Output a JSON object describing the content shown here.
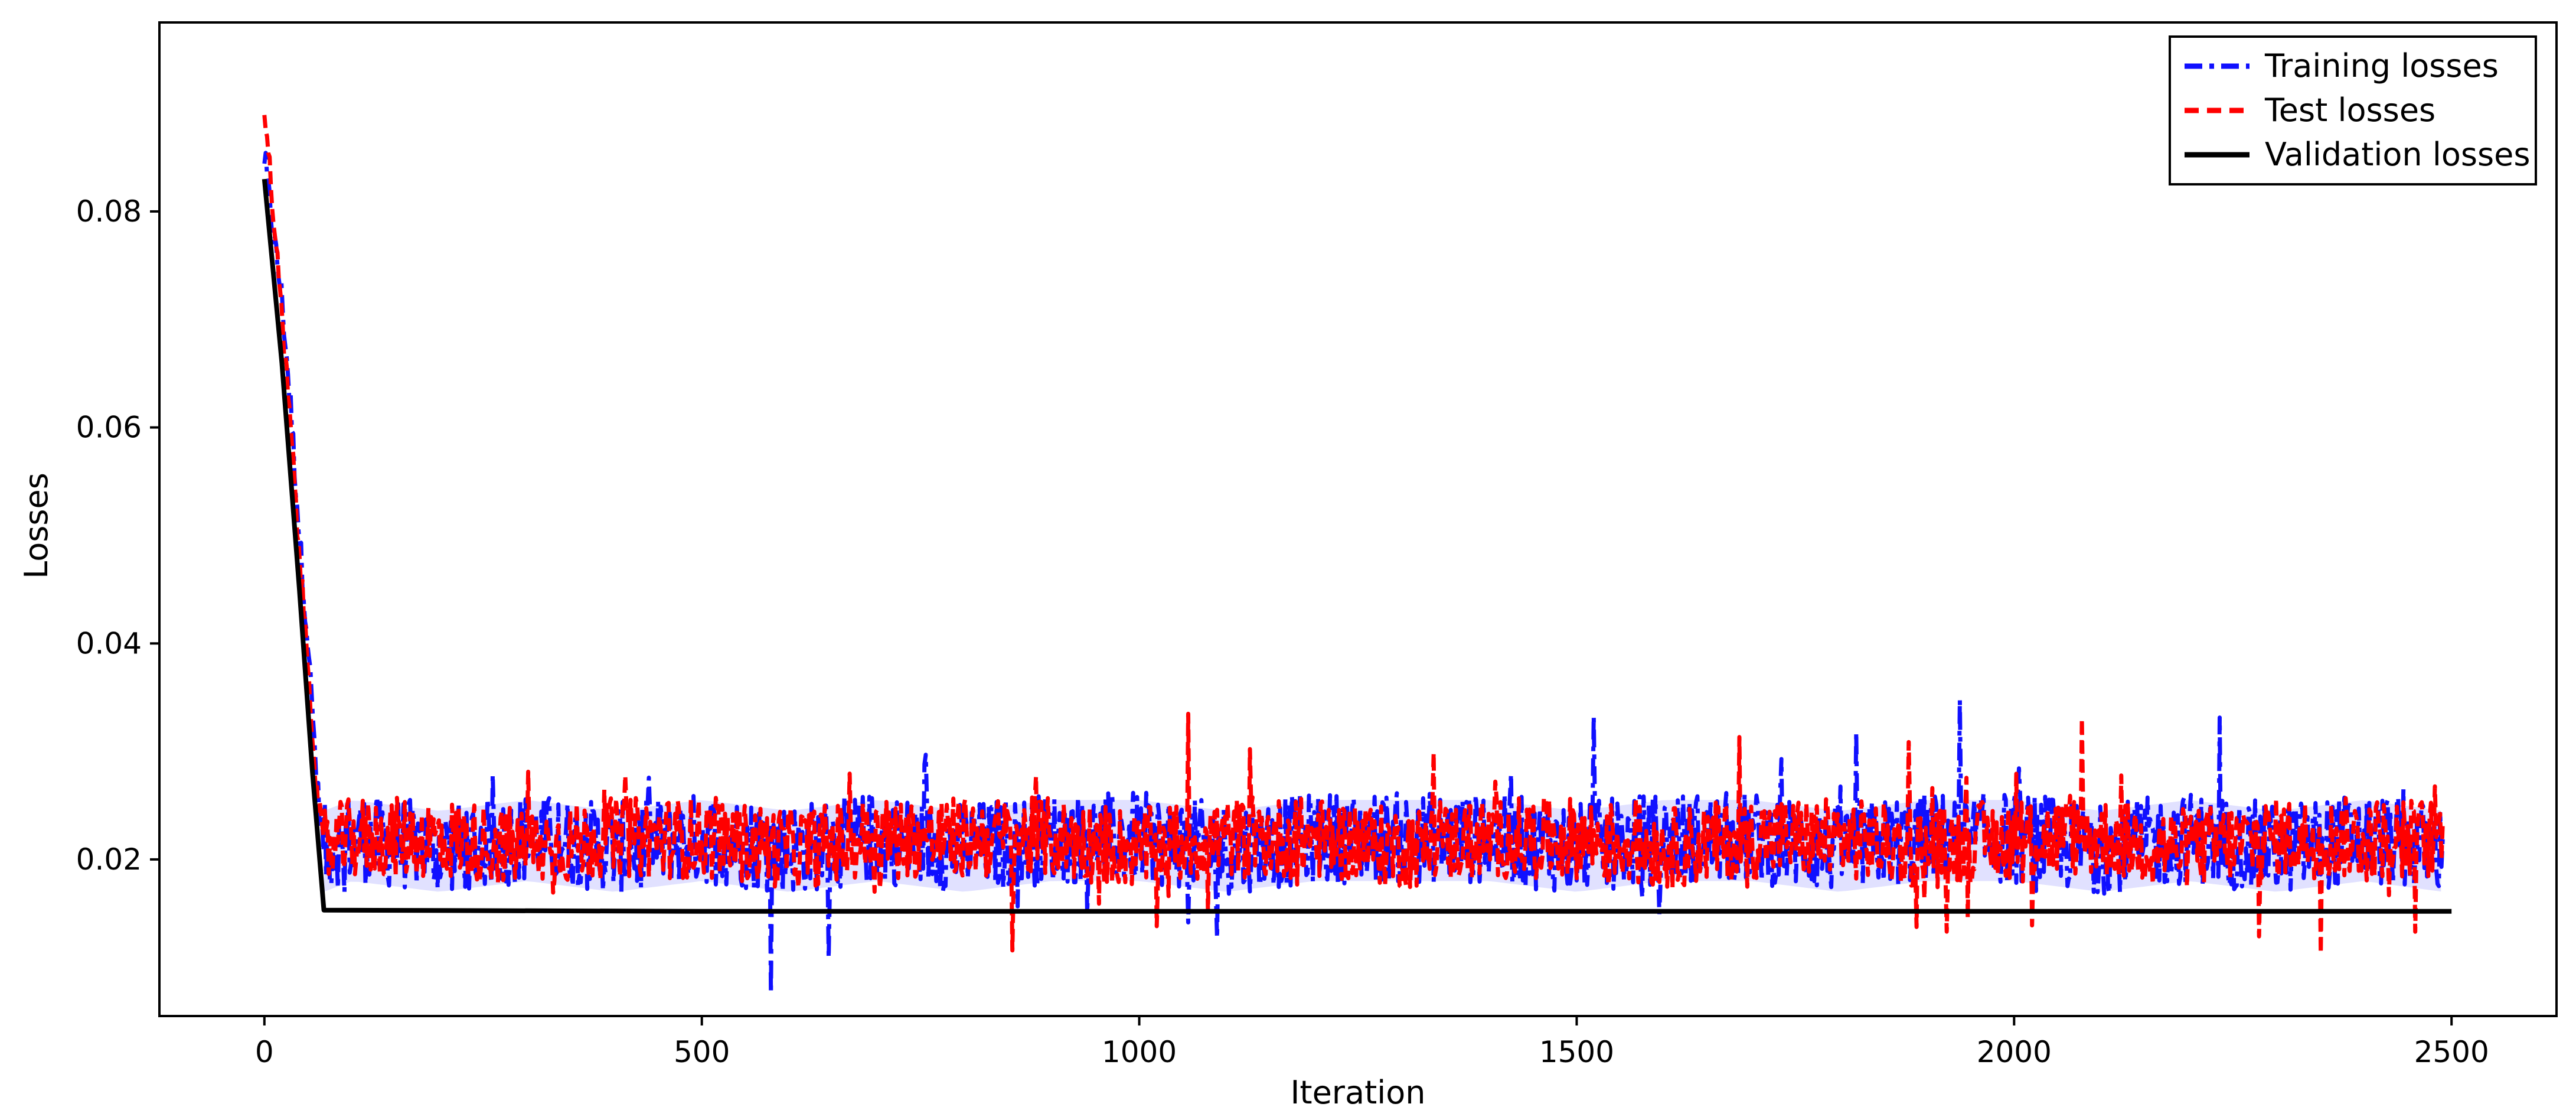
{
  "chart_data": {
    "type": "line",
    "title": "",
    "xlabel": "Iteration",
    "ylabel": "Losses",
    "xlim": [
      -120,
      2620
    ],
    "ylim": [
      0.0055,
      0.0975
    ],
    "xticks": [
      0,
      500,
      1000,
      1500,
      2000,
      2500
    ],
    "yticks": [
      0.02,
      0.04,
      0.06,
      0.08
    ],
    "xtick_labels": [
      "0",
      "500",
      "1000",
      "1500",
      "2000",
      "2500"
    ],
    "ytick_labels": [
      "0.02",
      "0.04",
      "0.06",
      "0.08"
    ],
    "grid": false,
    "legend_position": "top-right",
    "series": [
      {
        "name": "Training losses",
        "color": "#1010ff",
        "style": "dash-dot",
        "x": [
          0,
          10,
          20,
          30,
          40,
          50,
          60,
          68,
          100,
          200,
          300,
          400,
          500,
          600,
          700,
          800,
          900,
          1000,
          1100,
          1200,
          1300,
          1400,
          1500,
          1600,
          1700,
          1800,
          1900,
          2000,
          2100,
          2200,
          2300,
          2400,
          2490
        ],
        "y": [
          0.085,
          0.078,
          0.072,
          0.062,
          0.05,
          0.04,
          0.027,
          0.021,
          0.022,
          0.021,
          0.022,
          0.021,
          0.022,
          0.021,
          0.022,
          0.021,
          0.022,
          0.022,
          0.021,
          0.022,
          0.022,
          0.022,
          0.021,
          0.022,
          0.022,
          0.021,
          0.022,
          0.022,
          0.021,
          0.022,
          0.021,
          0.022,
          0.021
        ]
      },
      {
        "name": "Test losses",
        "color": "#ff0000",
        "style": "dashed",
        "x": [
          0,
          10,
          20,
          30,
          40,
          50,
          60,
          68,
          100,
          200,
          300,
          400,
          500,
          600,
          700,
          800,
          900,
          1000,
          1100,
          1200,
          1300,
          1400,
          1500,
          1600,
          1700,
          1800,
          1900,
          2000,
          2100,
          2200,
          2300,
          2400,
          2490
        ],
        "y": [
          0.09,
          0.08,
          0.07,
          0.06,
          0.048,
          0.038,
          0.026,
          0.021,
          0.022,
          0.022,
          0.021,
          0.022,
          0.022,
          0.021,
          0.022,
          0.022,
          0.022,
          0.021,
          0.022,
          0.022,
          0.021,
          0.022,
          0.022,
          0.021,
          0.022,
          0.022,
          0.021,
          0.022,
          0.022,
          0.021,
          0.022,
          0.022,
          0.022
        ]
      },
      {
        "name": "Validation losses",
        "color": "#000000",
        "style": "solid",
        "x": [
          0,
          20,
          40,
          55,
          68,
          500,
          1000,
          1500,
          2000,
          2500
        ],
        "y": [
          0.083,
          0.066,
          0.045,
          0.028,
          0.0153,
          0.0152,
          0.0152,
          0.0152,
          0.0152,
          0.0152
        ]
      }
    ]
  }
}
